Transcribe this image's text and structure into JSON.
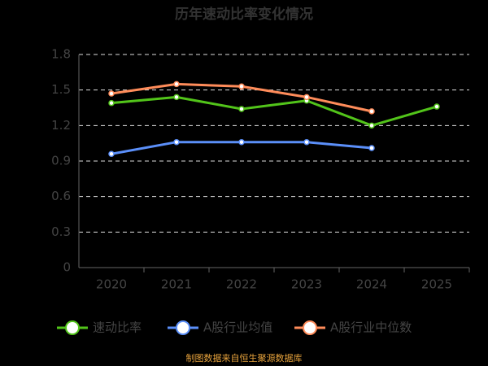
{
  "chart_data": {
    "type": "line",
    "title": "历年速动比率变化情况",
    "categories": [
      "2020",
      "2021",
      "2022",
      "2023",
      "2024",
      "2025"
    ],
    "series": [
      {
        "name": "速动比率",
        "color": "#52c41a",
        "values": [
          1.39,
          1.44,
          1.34,
          1.41,
          1.2,
          1.36
        ]
      },
      {
        "name": "A股行业均值",
        "color": "#5b8ff9",
        "values": [
          0.96,
          1.06,
          1.06,
          1.06,
          1.01,
          null
        ]
      },
      {
        "name": "A股行业中位数",
        "color": "#ff8c5a",
        "values": [
          1.47,
          1.55,
          1.53,
          1.44,
          1.32,
          null
        ]
      }
    ],
    "ylim": [
      0,
      1.8
    ],
    "yticks": [
      0,
      0.3,
      0.6,
      0.9,
      1.2,
      1.5,
      1.8
    ],
    "grid": true,
    "source": "制图数据来自恒生聚源数据库"
  }
}
